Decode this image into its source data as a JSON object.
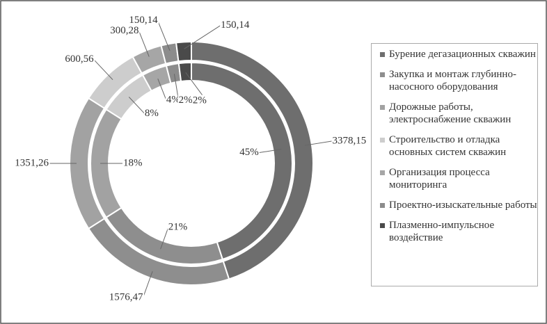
{
  "chart_data": {
    "type": "donut",
    "categories": [
      "Бурение дегазационных скважин",
      "Закупка и монтаж глубинно-насосного оборудования",
      "Дорожные работы, электроснабжение скважин",
      "Строительство и отладка основных систем скважин",
      "Организация процесса мониторинга",
      "Проектно-изыскательные работы",
      "Плазменно-импульсное воздействие"
    ],
    "colors": [
      "#6e6e6e",
      "#8e8e8e",
      "#a2a2a2",
      "#cdcdcd",
      "#a6a6a6",
      "#8c8c8c",
      "#4a4a4a"
    ],
    "series": [
      {
        "values": [
          3378.15,
          1576.47,
          1351.26,
          600.56,
          300.28,
          150.14,
          150.14
        ],
        "value_labels": [
          "3378,15",
          "1576,47",
          "1351,26",
          "600,56",
          "300,28",
          "150,14",
          "150,14"
        ]
      },
      {
        "values": [
          45,
          21,
          18,
          8,
          4,
          2,
          2
        ],
        "value_labels": [
          "45%",
          "21%",
          "18%",
          "8%",
          "4%",
          "2%",
          "2%"
        ]
      }
    ],
    "legend": "right"
  }
}
